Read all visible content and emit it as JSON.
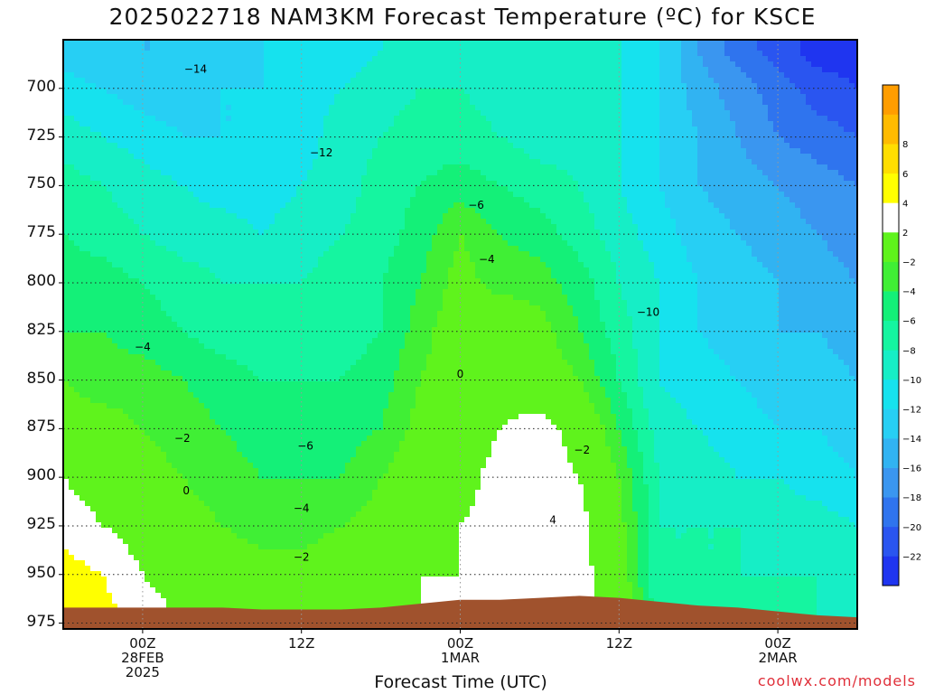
{
  "title": "2025022718 NAM3KM Forecast Temperature (ºC) for KSCE",
  "xlabel": "Forecast Time (UTC)",
  "credit": "coolwx.com/models",
  "chart_data": {
    "type": "heatmap",
    "title": "2025022718 NAM3KM Forecast Temperature (ºC) for KSCE",
    "xlabel": "Forecast Time (UTC)",
    "ylabel": "",
    "y_unit": "hPa (pressure level)",
    "y_ticks": [
      700,
      725,
      750,
      775,
      800,
      825,
      850,
      875,
      900,
      925,
      950,
      975
    ],
    "ylim": [
      675,
      978
    ],
    "x_ticks": [
      {
        "h": 6,
        "lines": [
          "00Z",
          "28FEB",
          "2025"
        ]
      },
      {
        "h": 18,
        "lines": [
          "12Z"
        ]
      },
      {
        "h": 30,
        "lines": [
          "00Z",
          "1MAR"
        ]
      },
      {
        "h": 42,
        "lines": [
          "12Z"
        ]
      },
      {
        "h": 54,
        "lines": [
          "00Z",
          "2MAR"
        ]
      }
    ],
    "xlim": [
      0,
      60
    ],
    "x_hours": [
      0,
      3,
      6,
      9,
      12,
      15,
      18,
      21,
      24,
      27,
      30,
      33,
      36,
      39,
      42,
      45,
      48,
      51,
      54,
      57,
      60
    ],
    "pressure_levels": [
      680,
      700,
      725,
      750,
      775,
      800,
      825,
      850,
      875,
      900,
      925,
      950,
      975
    ],
    "temperature_c": [
      [
        -13,
        -14,
        -14,
        -14,
        -13,
        -12,
        -12,
        -11,
        -10,
        -9,
        -10,
        -10,
        -10,
        -10,
        -10,
        -12,
        -16,
        -19,
        -21,
        -23,
        -23
      ],
      [
        -11,
        -12,
        -13,
        -13,
        -12,
        -12,
        -11,
        -10,
        -9,
        -8,
        -8,
        -9,
        -9,
        -9,
        -10,
        -12,
        -15,
        -17,
        -19,
        -21,
        -22
      ],
      [
        -9,
        -10,
        -11,
        -12,
        -12,
        -12,
        -11,
        -9,
        -8,
        -7,
        -7,
        -8,
        -9,
        -9,
        -10,
        -12,
        -14,
        -16,
        -18,
        -19,
        -20
      ],
      [
        -7,
        -8,
        -9,
        -10,
        -11,
        -11,
        -10,
        -9,
        -7,
        -6,
        -5,
        -6,
        -7,
        -8,
        -10,
        -12,
        -14,
        -15,
        -16,
        -17,
        -18
      ],
      [
        -6,
        -7,
        -8,
        -9,
        -9,
        -10,
        -9,
        -8,
        -7,
        -5,
        -2,
        -4,
        -5,
        -7,
        -9,
        -11,
        -13,
        -14,
        -15,
        -16,
        -17
      ],
      [
        -5,
        -5,
        -6,
        -7,
        -8,
        -8,
        -8,
        -7,
        -6,
        -4,
        -1,
        -3,
        -3,
        -5,
        -8,
        -10,
        -12,
        -13,
        -14,
        -15,
        -16
      ],
      [
        -4,
        -4,
        -5,
        -6,
        -7,
        -7,
        -7,
        -7,
        -6,
        -3,
        0,
        1,
        -1,
        -4,
        -7,
        -10,
        -12,
        -13,
        -14,
        -14,
        -15
      ],
      [
        -2,
        -3,
        -3,
        -4,
        -5,
        -6,
        -6,
        -6,
        -5,
        -2,
        0,
        1,
        0,
        -2,
        -6,
        -10,
        -11,
        -12,
        -13,
        -13,
        -14
      ],
      [
        -1,
        -1,
        -2,
        -3,
        -4,
        -5,
        -5,
        -5,
        -4,
        -1,
        0,
        2,
        3,
        1,
        -4,
        -9,
        -10,
        -11,
        -12,
        -12,
        -13
      ],
      [
        2,
        1,
        -1,
        -2,
        -3,
        -4,
        -4,
        -4,
        -2,
        0,
        1,
        3,
        3,
        2,
        -2,
        -8,
        -9,
        -10,
        -10,
        -11,
        -12
      ],
      [
        3,
        2,
        1,
        -1,
        -2,
        -3,
        -3,
        -2,
        -1,
        1,
        2,
        3,
        4,
        3,
        -1,
        -8,
        -8,
        -8,
        -9,
        -9,
        -10
      ],
      [
        5,
        4,
        2,
        1,
        0,
        -1,
        -1,
        0,
        1,
        2,
        2,
        3,
        4,
        3,
        0,
        -8,
        -8,
        -8,
        -8,
        -8,
        -9
      ],
      [
        6,
        5,
        3,
        2,
        1,
        0,
        0,
        0,
        1,
        2,
        3,
        3,
        4,
        3,
        1,
        -7,
        -7,
        -7,
        -7,
        -8,
        -8
      ]
    ],
    "surface_pressure": [
      967,
      967,
      967,
      967,
      967,
      968,
      968,
      968,
      967,
      965,
      963,
      963,
      962,
      961,
      962,
      964,
      966,
      967,
      969,
      971,
      972
    ],
    "contour_interval": 2,
    "contour_style": {
      "positive": "solid black",
      "zero_and_minus2": "magenta solid",
      "negative": "dashed black"
    },
    "contour_labels": [
      {
        "text": "−14",
        "h": 10,
        "p": 690
      },
      {
        "text": "−12",
        "h": 19.5,
        "p": 733
      },
      {
        "text": "−6",
        "h": 31.2,
        "p": 760
      },
      {
        "text": "−4",
        "h": 32,
        "p": 788
      },
      {
        "text": "−10",
        "h": 44.2,
        "p": 815
      },
      {
        "text": "−4",
        "h": 6,
        "p": 833
      },
      {
        "text": "0",
        "h": 30,
        "p": 847
      },
      {
        "text": "−2",
        "h": 9,
        "p": 880
      },
      {
        "text": "−6",
        "h": 18.3,
        "p": 884
      },
      {
        "text": "−2",
        "h": 39.2,
        "p": 886
      },
      {
        "text": "0",
        "h": 9.3,
        "p": 907
      },
      {
        "text": "−4",
        "h": 18,
        "p": 916
      },
      {
        "text": "4",
        "h": 37,
        "p": 922
      },
      {
        "text": "−2",
        "h": 18,
        "p": 941
      }
    ],
    "colorbar": {
      "bounds": [
        -24,
        -22,
        -20,
        -18,
        -16,
        -14,
        -12,
        -10,
        -8,
        -6,
        -4,
        -2,
        2,
        4,
        6,
        8,
        10
      ],
      "labels": [
        "−22",
        "−20",
        "−18",
        "−16",
        "−14",
        "−12",
        "−10",
        "−8",
        "−6",
        "−4",
        "−2",
        "2",
        "4",
        "6",
        "8"
      ],
      "colors": [
        "#1f35f0",
        "#2a55f0",
        "#2f74ee",
        "#3a96f0",
        "#31b3f2",
        "#27cff4",
        "#16e2ee",
        "#16eec6",
        "#15f5a0",
        "#14f078",
        "#40ef35",
        "#5ff31c",
        "#ffffff",
        "#ffff00",
        "#ffde00",
        "#ffbb00",
        "#ff9d00"
      ],
      "ground_color": "#a0522d"
    },
    "grid": true
  }
}
